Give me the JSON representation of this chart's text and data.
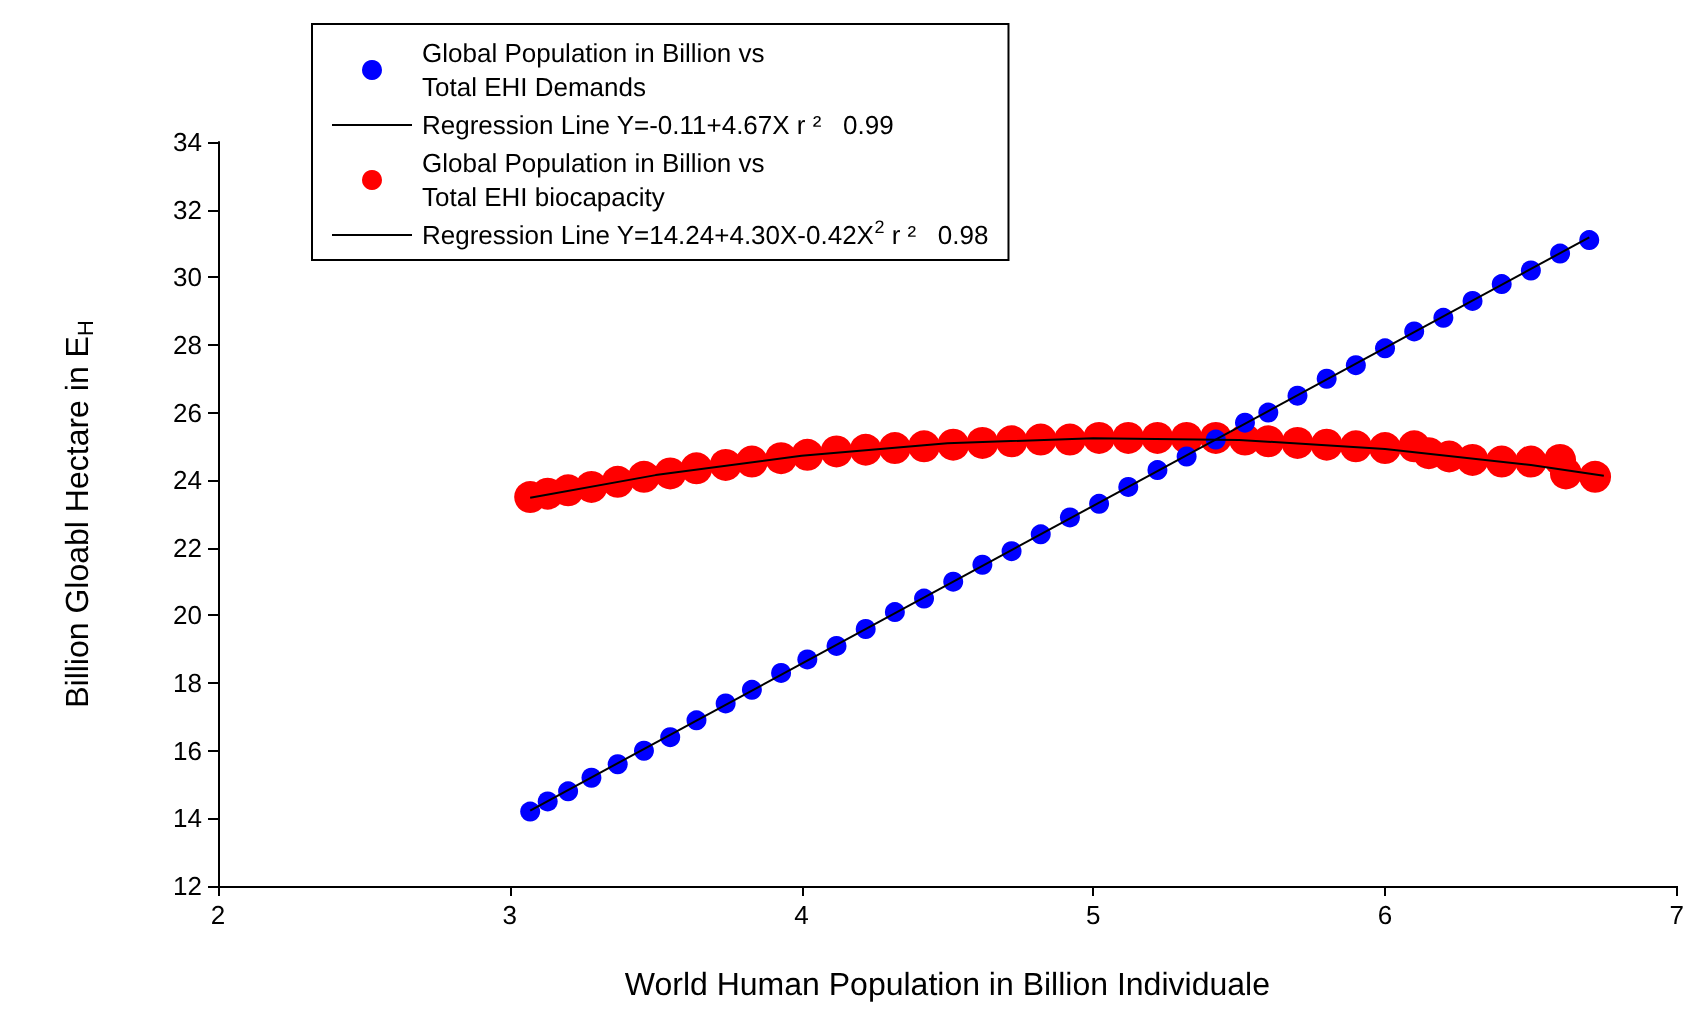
{
  "chart_data": {
    "type": "scatter",
    "xlabel": "World Human Population in Billion Individuale",
    "ylabel": "Billion Gloabl Hectare in E$_{H}$",
    "xlim": [
      2,
      7
    ],
    "xticks": [
      2,
      3,
      4,
      5,
      6,
      7
    ],
    "ylim": [
      12,
      34
    ],
    "yticks": [
      12,
      14,
      16,
      18,
      20,
      22,
      24,
      26,
      28,
      30,
      32,
      34
    ],
    "grid": false,
    "legend": "top left",
    "marker": "circle",
    "series": [
      {
        "name": "Global Population in Billion vs\nTotal EHI Demands",
        "color": "#0000ff",
        "x": [
          3.07,
          3.13,
          3.2,
          3.28,
          3.37,
          3.46,
          3.55,
          3.64,
          3.74,
          3.83,
          3.93,
          4.02,
          4.12,
          4.22,
          4.32,
          4.42,
          4.52,
          4.62,
          4.72,
          4.82,
          4.92,
          5.02,
          5.12,
          5.22,
          5.32,
          5.42,
          5.52,
          5.6,
          5.7,
          5.8,
          5.9,
          6.0,
          6.1,
          6.2,
          6.3,
          6.4,
          6.5,
          6.6,
          6.7
        ],
        "values": [
          14.2,
          14.5,
          14.8,
          15.2,
          15.6,
          16.0,
          16.4,
          16.9,
          17.4,
          17.8,
          18.3,
          18.7,
          19.1,
          19.6,
          20.1,
          20.5,
          21.0,
          21.5,
          21.9,
          22.4,
          22.9,
          23.3,
          23.8,
          24.3,
          24.7,
          25.2,
          25.7,
          26.0,
          26.5,
          27.0,
          27.4,
          27.9,
          28.4,
          28.8,
          29.3,
          29.8,
          30.2,
          30.7,
          31.1
        ]
      },
      {
        "name": "Regression Line Y=-0.11+4.67X r ²   0.99",
        "type": "line",
        "marker": "none",
        "color": "#000000",
        "x": [
          3.07,
          6.7
        ],
        "values": [
          14.23,
          31.18
        ]
      },
      {
        "name": "Global Population in Billion vs\nTotal EHI biocapacity",
        "color": "#ff0000",
        "x": [
          3.07,
          3.13,
          3.2,
          3.28,
          3.37,
          3.46,
          3.55,
          3.64,
          3.74,
          3.83,
          3.93,
          4.02,
          4.12,
          4.22,
          4.32,
          4.42,
          4.52,
          4.62,
          4.72,
          4.82,
          4.92,
          5.02,
          5.12,
          5.22,
          5.32,
          5.42,
          5.52,
          5.6,
          5.7,
          5.8,
          5.9,
          6.0,
          6.1,
          6.15,
          6.22,
          6.3,
          6.4,
          6.5,
          6.6,
          6.62,
          6.72
        ],
        "values": [
          23.5,
          23.6,
          23.7,
          23.8,
          23.95,
          24.1,
          24.2,
          24.35,
          24.45,
          24.55,
          24.65,
          24.75,
          24.85,
          24.9,
          24.95,
          25.0,
          25.05,
          25.1,
          25.15,
          25.2,
          25.2,
          25.25,
          25.25,
          25.25,
          25.25,
          25.25,
          25.2,
          25.15,
          25.1,
          25.05,
          25.0,
          24.95,
          25.0,
          24.8,
          24.7,
          24.6,
          24.55,
          24.55,
          24.6,
          24.2,
          24.1
        ]
      },
      {
        "name": "Regression Line Y=14.24+4.30X-0.42X$^{2}$ r ²   0.98",
        "type": "line",
        "marker": "none",
        "color": "#000000",
        "x": [
          3.07,
          3.5,
          4,
          4.5,
          5,
          5.5,
          6,
          6.5,
          6.75
        ],
        "values": [
          23.48,
          24.15,
          24.72,
          25.09,
          25.24,
          25.19,
          24.92,
          24.45,
          24.13
        ]
      }
    ]
  }
}
